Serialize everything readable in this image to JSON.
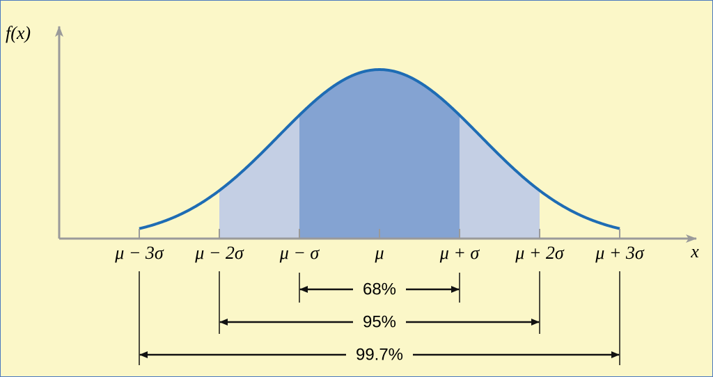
{
  "axes": {
    "y_label": "f(x)",
    "x_label": "x"
  },
  "x_tick_labels": [
    "μ − 3σ",
    "μ − 2σ",
    "μ − σ",
    "μ",
    "μ + σ",
    "μ + 2σ",
    "μ + 3σ"
  ],
  "ranges": [
    {
      "label": "68%"
    },
    {
      "label": "95%"
    },
    {
      "label": "99.7%"
    }
  ]
}
